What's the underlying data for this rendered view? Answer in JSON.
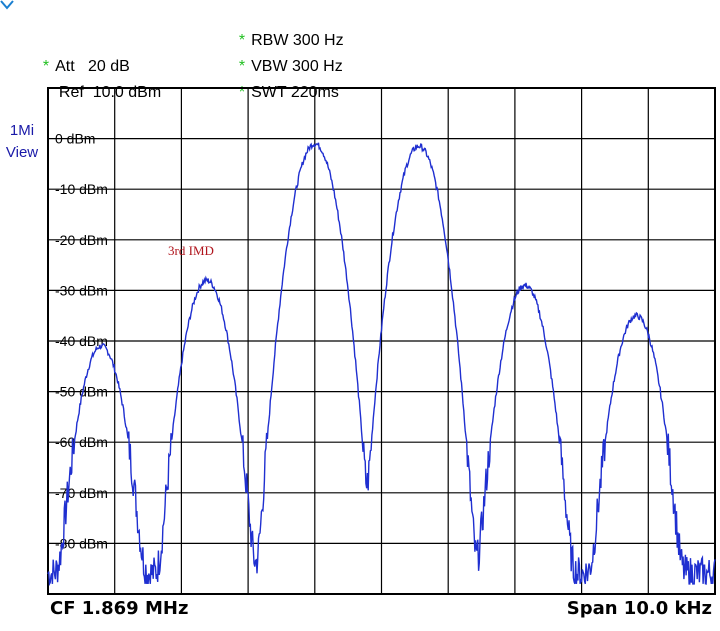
{
  "header": {
    "att_label": "Att",
    "att_value": "20 dB",
    "ref_label": "Ref",
    "ref_value": "10.0 dBm",
    "rbw": "RBW 300 Hz",
    "vbw": "VBW 300 Hz",
    "swt": "SWT 220ms",
    "star": "*"
  },
  "side": {
    "trace_label": "1Mi",
    "view_label": "View"
  },
  "footer": {
    "cf": "CF 1.869 MHz",
    "span": "Span 10.0 kHz"
  },
  "colors": {
    "trace": "#1f2fd0",
    "annotation": "#b0141c",
    "grid": "#000000",
    "star": "#22c022",
    "side_text": "#1a1aa8"
  },
  "chart_data": {
    "type": "line",
    "ylabel": "",
    "xlabel": "",
    "ylim": [
      -90,
      10
    ],
    "xlim": [
      -5,
      5
    ],
    "y_tick_labels": [
      "0 dBm",
      "-10 dBm",
      "-20 dBm",
      "-30 dBm",
      "-40 dBm",
      "-50 dBm",
      "-60 dBm",
      "-70 dBm",
      "-80 dBm"
    ],
    "y_tick_values": [
      0,
      -10,
      -20,
      -30,
      -40,
      -50,
      -60,
      -70,
      -80
    ],
    "annotations": [
      {
        "text": "3rd IMD",
        "x": -3.2,
        "y": -23
      }
    ],
    "series": [
      {
        "peaks": [
          {
            "x": -4.2,
            "y": -41
          },
          {
            "x": -2.62,
            "y": -28
          },
          {
            "x": -1.0,
            "y": -1
          },
          {
            "x": 0.56,
            "y": -1.5
          },
          {
            "x": 2.15,
            "y": -29
          },
          {
            "x": 3.82,
            "y": -35
          }
        ]
      }
    ]
  }
}
